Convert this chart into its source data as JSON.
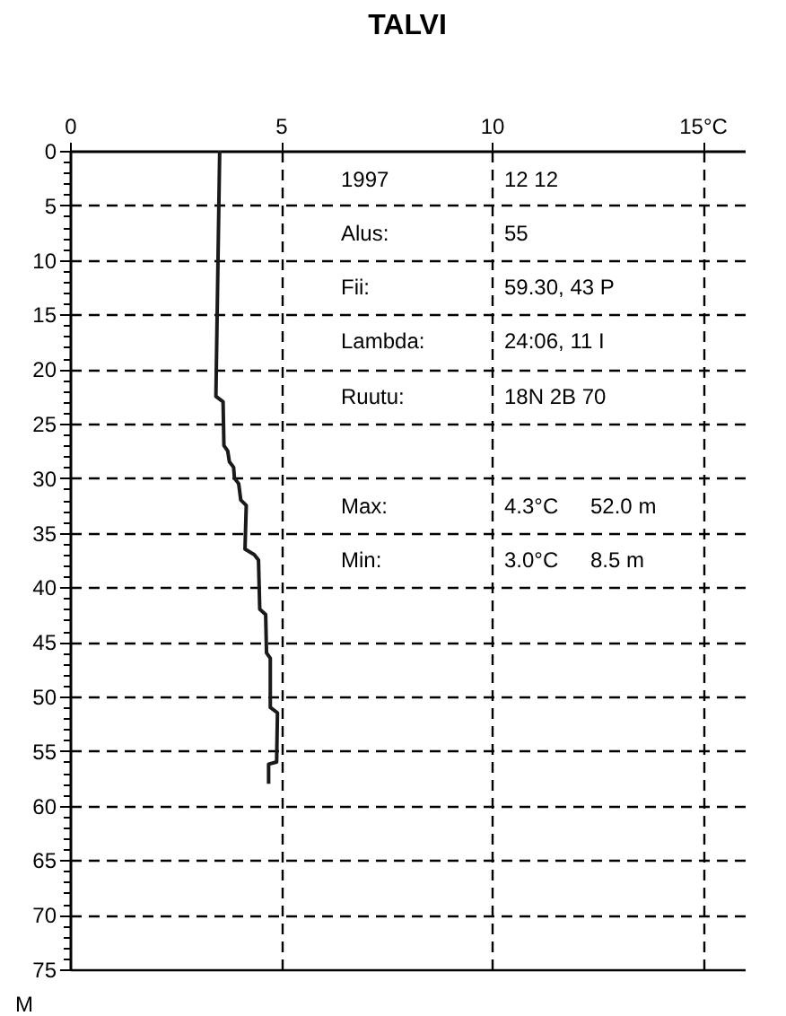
{
  "chart_data": {
    "type": "line",
    "title": "TALVI",
    "ylabel": "M",
    "x": [
      3.55,
      3.46,
      3.63,
      3.65,
      3.74,
      3.78,
      3.88,
      3.9,
      4.0,
      4.05,
      4.18,
      4.15,
      4.37,
      4.47,
      4.5,
      4.64,
      4.66,
      4.75,
      4.75,
      4.92,
      4.9,
      4.71,
      4.71
    ],
    "series": [
      {
        "color": "#1a1a1a",
        "values": [
          0,
          22.5,
          23,
          27,
          27.5,
          28.5,
          29,
          30,
          30.5,
          32,
          32.5,
          36.5,
          37,
          37.5,
          42,
          42.5,
          46,
          46.5,
          51,
          51.5,
          56,
          56.2,
          58
        ]
      }
    ],
    "xlim": [
      0,
      16
    ],
    "xticks": [
      0,
      5,
      10,
      {
        "value": 15,
        "label": "15°C"
      }
    ],
    "ylim": [
      75,
      0
    ],
    "yticks": [
      0,
      {
        "value": 1,
        "label": null
      },
      {
        "value": 2,
        "label": null
      },
      {
        "value": 3,
        "label": null
      },
      {
        "value": 4,
        "label": null
      },
      5,
      {
        "value": 6,
        "label": null
      },
      {
        "value": 7,
        "label": null
      },
      {
        "value": 8,
        "label": null
      },
      {
        "value": 9,
        "label": null
      },
      10,
      {
        "value": 11,
        "label": null
      },
      {
        "value": 12,
        "label": null
      },
      {
        "value": 13,
        "label": null
      },
      {
        "value": 14,
        "label": null
      },
      15,
      {
        "value": 16,
        "label": null
      },
      {
        "value": 17,
        "label": null
      },
      {
        "value": 18,
        "label": null
      },
      {
        "value": 19,
        "label": null
      },
      20,
      {
        "value": 21,
        "label": null
      },
      {
        "value": 22,
        "label": null
      },
      {
        "value": 23,
        "label": null
      },
      {
        "value": 24,
        "label": null
      },
      25,
      {
        "value": 26,
        "label": null
      },
      {
        "value": 27,
        "label": null
      },
      {
        "value": 28,
        "label": null
      },
      {
        "value": 29,
        "label": null
      },
      30,
      {
        "value": 31,
        "label": null
      },
      {
        "value": 32,
        "label": null
      },
      {
        "value": 33,
        "label": null
      },
      {
        "value": 34,
        "label": null
      },
      35,
      {
        "value": 36,
        "label": null
      },
      {
        "value": 37,
        "label": null
      },
      {
        "value": 38,
        "label": null
      },
      {
        "value": 39,
        "label": null
      },
      40,
      {
        "value": 41,
        "label": null
      },
      {
        "value": 42,
        "label": null
      },
      {
        "value": 43,
        "label": null
      },
      {
        "value": 44,
        "label": null
      },
      45,
      {
        "value": 46,
        "label": null
      },
      {
        "value": 47,
        "label": null
      },
      {
        "value": 48,
        "label": null
      },
      {
        "value": 49,
        "label": null
      },
      50,
      {
        "value": 51,
        "label": null
      },
      {
        "value": 52,
        "label": null
      },
      {
        "value": 53,
        "label": null
      },
      {
        "value": 54,
        "label": null
      },
      55,
      {
        "value": 56,
        "label": null
      },
      {
        "value": 57,
        "label": null
      },
      {
        "value": 58,
        "label": null
      },
      {
        "value": 59,
        "label": null
      },
      60,
      {
        "value": 61,
        "label": null
      },
      {
        "value": 62,
        "label": null
      },
      {
        "value": 63,
        "label": null
      },
      {
        "value": 64,
        "label": null
      },
      65,
      {
        "value": 66,
        "label": null
      },
      {
        "value": 67,
        "label": null
      },
      {
        "value": 68,
        "label": null
      },
      {
        "value": 69,
        "label": null
      },
      70,
      {
        "value": 71,
        "label": null
      },
      {
        "value": 72,
        "label": null
      },
      {
        "value": 73,
        "label": null
      },
      {
        "value": 74,
        "label": null
      },
      75
    ],
    "grid": true,
    "line_style": "solid",
    "annotations": [
      "1997",
      "12  12",
      "Alus:",
      "55",
      "Fii:",
      "59.30, 43 P",
      "Lambda:",
      "24:06, 11 I",
      "Ruutu:",
      "18N 2B 70",
      "Max:",
      "4.3°C",
      "52.0 m",
      "Min:",
      "3.0°C",
      "8.5 m"
    ]
  }
}
